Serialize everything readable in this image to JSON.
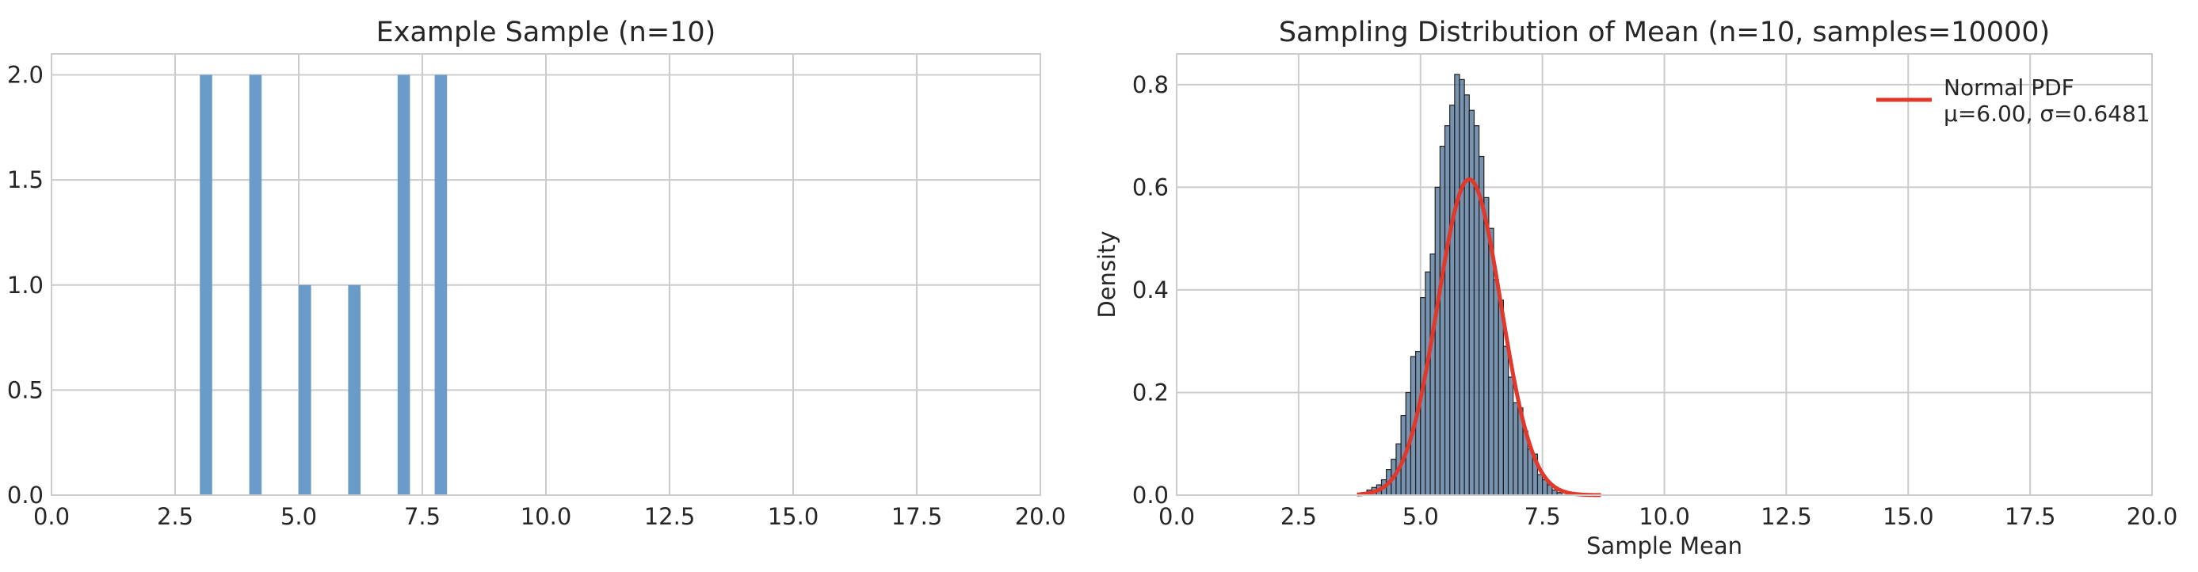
{
  "chart_data": [
    {
      "type": "bar",
      "title": "Example Sample (n=10)",
      "xlabel": "",
      "ylabel": "",
      "xlim": [
        0,
        20
      ],
      "ylim": [
        0,
        2.1
      ],
      "xticks": [
        "0.0",
        "2.5",
        "5.0",
        "7.5",
        "10.0",
        "12.5",
        "15.0",
        "17.5",
        "20.0"
      ],
      "yticks": [
        "0.0",
        "0.5",
        "1.0",
        "1.5",
        "2.0"
      ],
      "grid": true,
      "color": "#6b9bc8",
      "bar_width": 0.25,
      "bars": [
        {
          "x": 3.125,
          "count": 2
        },
        {
          "x": 4.125,
          "count": 2
        },
        {
          "x": 5.125,
          "count": 1
        },
        {
          "x": 6.125,
          "count": 1
        },
        {
          "x": 7.125,
          "count": 2
        },
        {
          "x": 7.875,
          "count": 2
        }
      ]
    },
    {
      "type": "bar",
      "title": "Sampling Distribution of Mean (n=10, samples=10000)",
      "xlabel": "Sample Mean",
      "ylabel": "Density",
      "xlim": [
        0,
        20
      ],
      "ylim": [
        0,
        0.86
      ],
      "xticks": [
        "0.0",
        "2.5",
        "5.0",
        "7.5",
        "10.0",
        "12.5",
        "15.0",
        "17.5",
        "20.0"
      ],
      "yticks": [
        "0.0",
        "0.2",
        "0.4",
        "0.6",
        "0.8"
      ],
      "grid": true,
      "hist_color": "#4a6f94",
      "hist_edge": "#222222",
      "bin_width": 0.1,
      "histogram": {
        "x": [
          3.85,
          3.95,
          4.05,
          4.15,
          4.25,
          4.35,
          4.45,
          4.55,
          4.65,
          4.75,
          4.85,
          4.95,
          5.05,
          5.15,
          5.25,
          5.35,
          5.45,
          5.55,
          5.65,
          5.75,
          5.85,
          5.95,
          6.05,
          6.15,
          6.25,
          6.35,
          6.45,
          6.55,
          6.65,
          6.75,
          6.85,
          6.95,
          7.05,
          7.15,
          7.25,
          7.35,
          7.45,
          7.55,
          7.65,
          7.75,
          7.85
        ],
        "density": [
          0.005,
          0.01,
          0.015,
          0.02,
          0.03,
          0.05,
          0.07,
          0.1,
          0.155,
          0.2,
          0.27,
          0.28,
          0.385,
          0.435,
          0.47,
          0.6,
          0.68,
          0.72,
          0.76,
          0.82,
          0.81,
          0.78,
          0.75,
          0.72,
          0.66,
          0.58,
          0.52,
          0.42,
          0.38,
          0.29,
          0.23,
          0.18,
          0.17,
          0.125,
          0.09,
          0.08,
          0.04,
          0.03,
          0.02,
          0.01,
          0.005
        ]
      },
      "series": [
        {
          "name": "Normal PDF\nμ=6.00, σ=0.6481",
          "type": "line",
          "color": "#e0392b",
          "mu": 6.0,
          "sigma": 0.6481,
          "x_range": [
            3.7,
            8.7
          ]
        }
      ],
      "legend": "top-right"
    }
  ]
}
